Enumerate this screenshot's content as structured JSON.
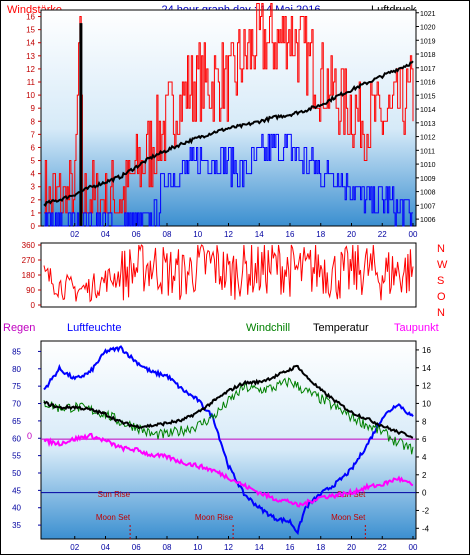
{
  "header": {
    "left_label": "Windstärke",
    "title": "24 hour graph day : 14 Mai 2016",
    "right_label": "Luftdruck"
  },
  "colors": {
    "wind_gust": "#ff0000",
    "wind_avg": "#0000ff",
    "pressure": "#000000",
    "wind_dir": "#ff0000",
    "humidity": "#0000ff",
    "windchill": "#008000",
    "temperature": "#000000",
    "dewpoint": "#ff00ff",
    "ticks": "#0000a0",
    "moon_sun": "#c00000"
  },
  "chart_data": [
    {
      "type": "line",
      "panel": "wind_pressure",
      "title": "24 hour graph day : 14 Mai 2016",
      "x_ticks": [
        "02",
        "04",
        "06",
        "08",
        "10",
        "12",
        "14",
        "16",
        "18",
        "20",
        "22",
        "00"
      ],
      "y_left": {
        "label": "Windstärke",
        "ticks": [
          "0",
          "1",
          "2",
          "3",
          "4",
          "5",
          "6",
          "7",
          "8",
          "9",
          "10",
          "11",
          "12",
          "13",
          "14",
          "15",
          "16"
        ],
        "range": [
          0,
          16.5
        ]
      },
      "y_right": {
        "label": "Luftdruck",
        "ticks": [
          "1006",
          "1007",
          "1008",
          "1009",
          "1010",
          "1011",
          "1012",
          "1013",
          "1014",
          "1015",
          "1016",
          "1017",
          "1018",
          "1019",
          "1020",
          "1021"
        ],
        "range": [
          1005.5,
          1021.2
        ]
      },
      "series": [
        {
          "name": "gust",
          "axis": "left",
          "x": [
            0,
            1,
            2,
            2.3,
            2.5,
            3,
            4,
            5,
            5.5,
            6,
            7,
            8,
            9,
            10,
            11,
            12,
            13,
            14,
            15,
            16,
            17,
            18,
            19,
            20,
            21,
            22,
            23,
            24
          ],
          "y": [
            2,
            2,
            2,
            15.5,
            2,
            2,
            2,
            2,
            3,
            4,
            6,
            8,
            10,
            11,
            11,
            11,
            13,
            14,
            14,
            15,
            13,
            11,
            10,
            9,
            8,
            8,
            9,
            10
          ]
        },
        {
          "name": "average",
          "axis": "left",
          "x": [
            0,
            1,
            2,
            3,
            4,
            5,
            6,
            7,
            7.5,
            8,
            9,
            10,
            11,
            12,
            13,
            14,
            15,
            16,
            17,
            18,
            19,
            20,
            21,
            22,
            23,
            24
          ],
          "y": [
            0,
            0,
            0,
            0,
            0,
            0,
            0,
            0,
            2,
            4,
            4,
            5,
            5,
            5,
            4,
            5,
            6,
            6,
            5,
            4,
            4,
            3,
            2,
            2,
            1,
            1
          ]
        },
        {
          "name": "pressure",
          "axis": "right",
          "x": [
            0,
            1,
            2,
            3,
            4,
            5,
            6,
            7,
            8,
            9,
            10,
            11,
            12,
            13,
            14,
            15,
            16,
            17,
            18,
            19,
            20,
            21,
            22,
            23,
            24
          ],
          "y": [
            1007.1,
            1007.4,
            1007.8,
            1008.3,
            1008.7,
            1009.1,
            1009.8,
            1010.5,
            1011.0,
            1011.5,
            1011.9,
            1012.3,
            1012.6,
            1012.8,
            1013.1,
            1013.4,
            1013.6,
            1013.9,
            1014.3,
            1014.9,
            1015.4,
            1015.9,
            1016.4,
            1016.9,
            1017.4
          ]
        }
      ]
    },
    {
      "type": "line",
      "panel": "wind_direction",
      "x_ticks": [],
      "y_left": {
        "ticks": [
          "0",
          "90",
          "180",
          "270",
          "360"
        ],
        "range": [
          0,
          360
        ]
      },
      "y_right": {
        "ticks": [
          "N",
          "W",
          "S",
          "O",
          "N"
        ]
      },
      "series": [
        {
          "name": "direction",
          "x": [
            0,
            1,
            2,
            3,
            4,
            5,
            6,
            7,
            8,
            9,
            10,
            11,
            12,
            13,
            14,
            15,
            16,
            17,
            18,
            19,
            20,
            21,
            22,
            23,
            24
          ],
          "y": [
            180,
            120,
            90,
            100,
            150,
            180,
            220,
            240,
            200,
            180,
            230,
            250,
            180,
            220,
            200,
            240,
            210,
            200,
            230,
            180,
            200,
            220,
            180,
            200,
            200
          ]
        }
      ]
    },
    {
      "type": "line",
      "panel": "temperature_humidity",
      "legend": [
        "Regen",
        "Luftfeuchte",
        "Windchill",
        "Temperatur",
        "Taupunkt"
      ],
      "x_ticks": [
        "02",
        "04",
        "06",
        "08",
        "10",
        "12",
        "14",
        "16",
        "18",
        "20",
        "22",
        "00"
      ],
      "y_left": {
        "ticks": [
          "35",
          "40",
          "45",
          "50",
          "55",
          "60",
          "65",
          "70",
          "75",
          "80",
          "85"
        ],
        "range": [
          31,
          88
        ]
      },
      "y_right": {
        "ticks": [
          "-4",
          "-2",
          "0",
          "2",
          "4",
          "6",
          "8",
          "10",
          "12",
          "14",
          "16"
        ],
        "range": [
          -5.2,
          17
        ]
      },
      "rain_axis_label": "0",
      "annotations": [
        {
          "text": "Sun Rise",
          "x": 5.6
        },
        {
          "text": "Moon Set",
          "x": 5.6
        },
        {
          "text": "Moon Rise",
          "x": 12.3
        },
        {
          "text": "Sun Set",
          "x": 20.9
        },
        {
          "text": "Moon Set",
          "x": 20.9
        }
      ],
      "series": [
        {
          "name": "Luftfeuchte",
          "x": [
            0,
            1,
            2,
            3,
            4,
            5,
            6,
            7,
            8,
            9,
            10,
            11,
            12,
            13,
            14,
            15,
            16,
            16.5,
            17,
            18,
            19,
            20,
            21,
            22,
            23,
            24
          ],
          "y": [
            74,
            80,
            77,
            79,
            85,
            86,
            82,
            79,
            78,
            74,
            71,
            66,
            52,
            44,
            40,
            37,
            36,
            33,
            40,
            44,
            47,
            51,
            58,
            66,
            70,
            66
          ]
        },
        {
          "name": "Temperatur",
          "x": [
            0,
            1,
            2,
            3,
            4,
            5,
            6,
            7,
            8,
            9,
            10,
            11,
            12,
            13,
            14,
            15,
            16,
            16.5,
            17,
            18,
            19,
            20,
            21,
            22,
            23,
            24
          ],
          "y": [
            10.1,
            9.5,
            9.6,
            9.3,
            8.8,
            7.9,
            7.4,
            7.5,
            7.8,
            8.1,
            9.0,
            10.2,
            11.4,
            12.3,
            12.4,
            13.0,
            13.8,
            14.2,
            13.1,
            11.5,
            10.2,
            9.0,
            8.3,
            7.5,
            6.8,
            6.3
          ]
        },
        {
          "name": "Windchill",
          "x": [
            0,
            1,
            2,
            3,
            4,
            5,
            6,
            7,
            8,
            9,
            10,
            11,
            12,
            13,
            14,
            15,
            16,
            17,
            18,
            19,
            20,
            21,
            22,
            23,
            24
          ],
          "y": [
            10.1,
            9.5,
            9.6,
            9.3,
            8.8,
            7.9,
            7.4,
            6.5,
            6.5,
            7.0,
            7.5,
            8.5,
            10.2,
            11.8,
            11.5,
            11.8,
            12.5,
            11.4,
            10.5,
            9.5,
            8.5,
            7.6,
            6.8,
            5.6,
            4.8
          ]
        },
        {
          "name": "Taupunkt",
          "x": [
            0,
            1,
            2,
            3,
            4,
            5,
            6,
            7,
            8,
            9,
            10,
            11,
            12,
            13,
            14,
            15,
            16,
            16.5,
            17,
            18,
            19,
            20,
            21,
            22,
            23,
            24
          ],
          "y": [
            5.8,
            5.5,
            6.0,
            6.4,
            5.8,
            5.0,
            4.8,
            4.2,
            4.0,
            3.4,
            3.0,
            2.5,
            1.7,
            0.8,
            0.0,
            -0.7,
            -1.0,
            -1.5,
            -1.2,
            -0.5,
            -0.3,
            0.0,
            0.6,
            0.9,
            1.6,
            0.8
          ]
        },
        {
          "name": "Regen",
          "x": [
            0,
            24
          ],
          "y": [
            0,
            0
          ]
        }
      ]
    }
  ]
}
